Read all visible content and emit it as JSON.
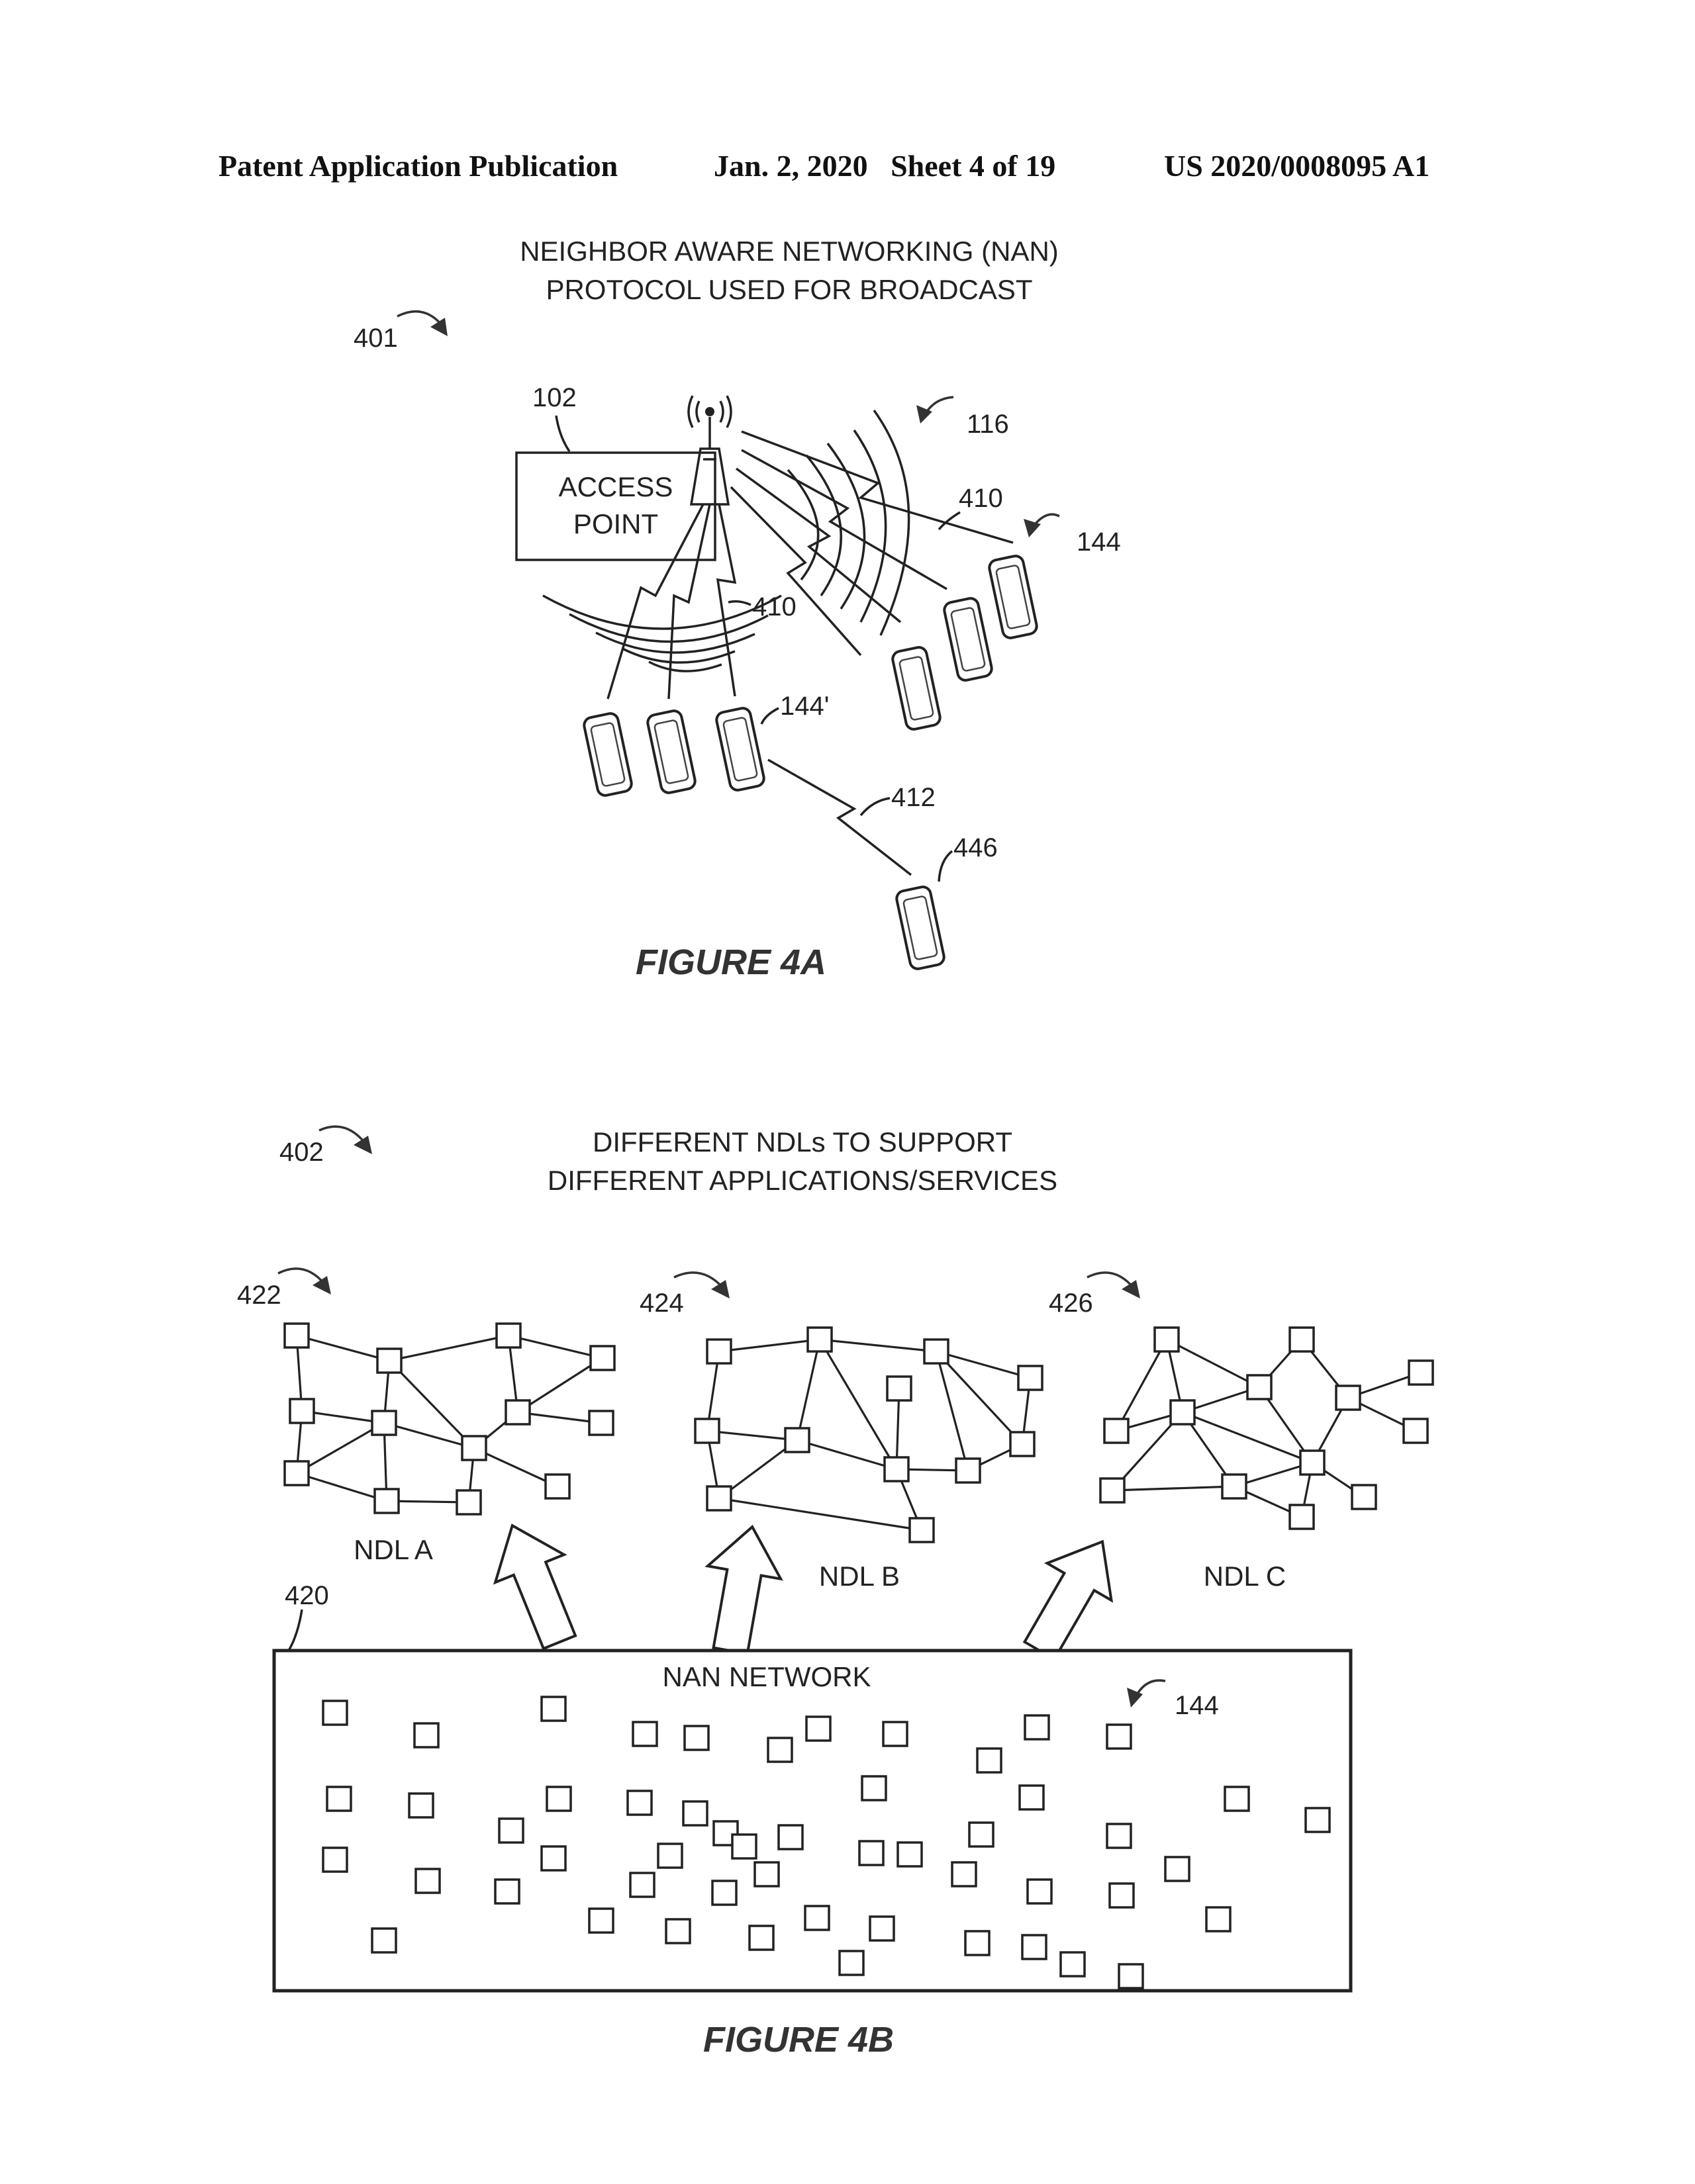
{
  "header": {
    "publication": "Patent Application Publication",
    "date_sheet": "Jan. 2, 2020   Sheet 4 of 19",
    "number": "US 2020/0008095 A1"
  },
  "fig4a": {
    "title_line1": "NEIGHBOR AWARE NETWORKING (NAN)",
    "title_line2": "PROTOCOL USED FOR BROADCAST",
    "ref_401": "401",
    "ref_102": "102",
    "access_point_line1": "ACCESS",
    "access_point_line2": "POINT",
    "ref_116": "116",
    "ref_410_right": "410",
    "ref_410_left": "410",
    "ref_144": "144",
    "ref_144_prime": "144'",
    "ref_412": "412",
    "ref_446": "446",
    "caption": "FIGURE 4A"
  },
  "fig4b": {
    "ref_402": "402",
    "title_line1": "DIFFERENT NDLs TO SUPPORT",
    "title_line2": "DIFFERENT APPLICATIONS/SERVICES",
    "ref_422": "422",
    "ref_424": "424",
    "ref_426": "426",
    "ndl_a": "NDL A",
    "ndl_b": "NDL B",
    "ndl_c": "NDL C",
    "ref_420": "420",
    "nan_network": "NAN NETWORK",
    "ref_144": "144",
    "caption": "FIGURE 4B"
  }
}
